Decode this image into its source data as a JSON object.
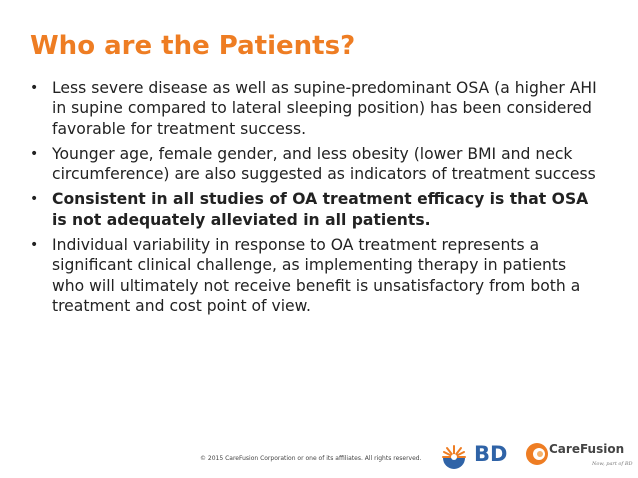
{
  "slide": {
    "title": "Who are the Patients?",
    "bullet_glyph": "•",
    "bullets": [
      {
        "text": "Less severe disease as well as supine-predominant OSA (a higher AHI in supine compared to lateral sleeping position) has been considered favorable for treatment success.",
        "bold": false
      },
      {
        "text": "Younger age, female gender, and less obesity (lower BMI and neck circumference) are also suggested as indicators of treatment success",
        "bold": false
      },
      {
        "text": "Consistent in all studies of OA treatment efficacy is that OSA is not adequately alleviated in all patients.",
        "bold": true
      },
      {
        "text": "Individual variability in response to OA treatment represents a significant clinical challenge, as implementing therapy in patients who will ultimately not receive benefit is unsatisfactory from both a treatment and cost point of view.",
        "bold": false
      }
    ],
    "title_color": "#ee7d23"
  },
  "footer": {
    "copyright": "© 2015 CareFusion Corporation or one of its affiliates. All rights reserved.",
    "bd_logo": {
      "icon": "bd-sunburst-icon",
      "text": "BD",
      "color": "#2f63a7",
      "accent": "#ee7d23"
    },
    "carefusion_logo": {
      "icon": "carefusion-swirl-icon",
      "text": "CareFusion",
      "tagline": "Now, part of BD",
      "color": "#ee7d23"
    }
  }
}
